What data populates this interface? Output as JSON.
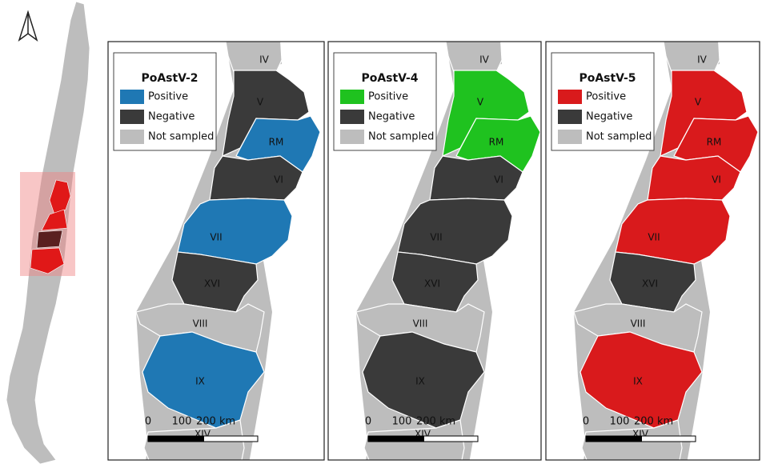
{
  "panels": [
    {
      "legend_title": "PoAstV-2",
      "legend": [
        {
          "label": "Positive",
          "color": "#1f78b4"
        },
        {
          "label": "Negative",
          "color": "#3a3a3a"
        },
        {
          "label": "Not sampled",
          "color": "#bdbdbd"
        }
      ],
      "regions": [
        {
          "label": "IV",
          "status": "Not sampled"
        },
        {
          "label": "V",
          "status": "Negative"
        },
        {
          "label": "RM",
          "status": "Positive"
        },
        {
          "label": "VI",
          "status": "Negative"
        },
        {
          "label": "VII",
          "status": "Positive"
        },
        {
          "label": "XVI",
          "status": "Negative"
        },
        {
          "label": "VIII",
          "status": "Not sampled"
        },
        {
          "label": "IX",
          "status": "Positive"
        },
        {
          "label": "XIV",
          "status": "Not sampled"
        }
      ]
    },
    {
      "legend_title": "PoAstV-4",
      "legend": [
        {
          "label": "Positive",
          "color": "#1fc21f"
        },
        {
          "label": "Negative",
          "color": "#3a3a3a"
        },
        {
          "label": "Not sampled",
          "color": "#bdbdbd"
        }
      ],
      "regions": [
        {
          "label": "IV",
          "status": "Not sampled"
        },
        {
          "label": "V",
          "status": "Positive"
        },
        {
          "label": "RM",
          "status": "Positive"
        },
        {
          "label": "VI",
          "status": "Negative"
        },
        {
          "label": "VII",
          "status": "Negative"
        },
        {
          "label": "XVI",
          "status": "Negative"
        },
        {
          "label": "VIII",
          "status": "Not sampled"
        },
        {
          "label": "IX",
          "status": "Negative"
        },
        {
          "label": "XIV",
          "status": "Not sampled"
        }
      ]
    },
    {
      "legend_title": "PoAstV-5",
      "legend": [
        {
          "label": "Positive",
          "color": "#d91a1c"
        },
        {
          "label": "Negative",
          "color": "#3a3a3a"
        },
        {
          "label": "Not sampled",
          "color": "#bdbdbd"
        }
      ],
      "regions": [
        {
          "label": "IV",
          "status": "Not sampled"
        },
        {
          "label": "V",
          "status": "Positive"
        },
        {
          "label": "RM",
          "status": "Positive"
        },
        {
          "label": "VI",
          "status": "Positive"
        },
        {
          "label": "VII",
          "status": "Positive"
        },
        {
          "label": "XVI",
          "status": "Negative"
        },
        {
          "label": "VIII",
          "status": "Not sampled"
        },
        {
          "label": "IX",
          "status": "Positive"
        },
        {
          "label": "XIV",
          "status": "Not sampled"
        }
      ]
    }
  ],
  "scale": [
    0,
    100,
    {
      "value": 200,
      "label": "200 km"
    }
  ]
}
